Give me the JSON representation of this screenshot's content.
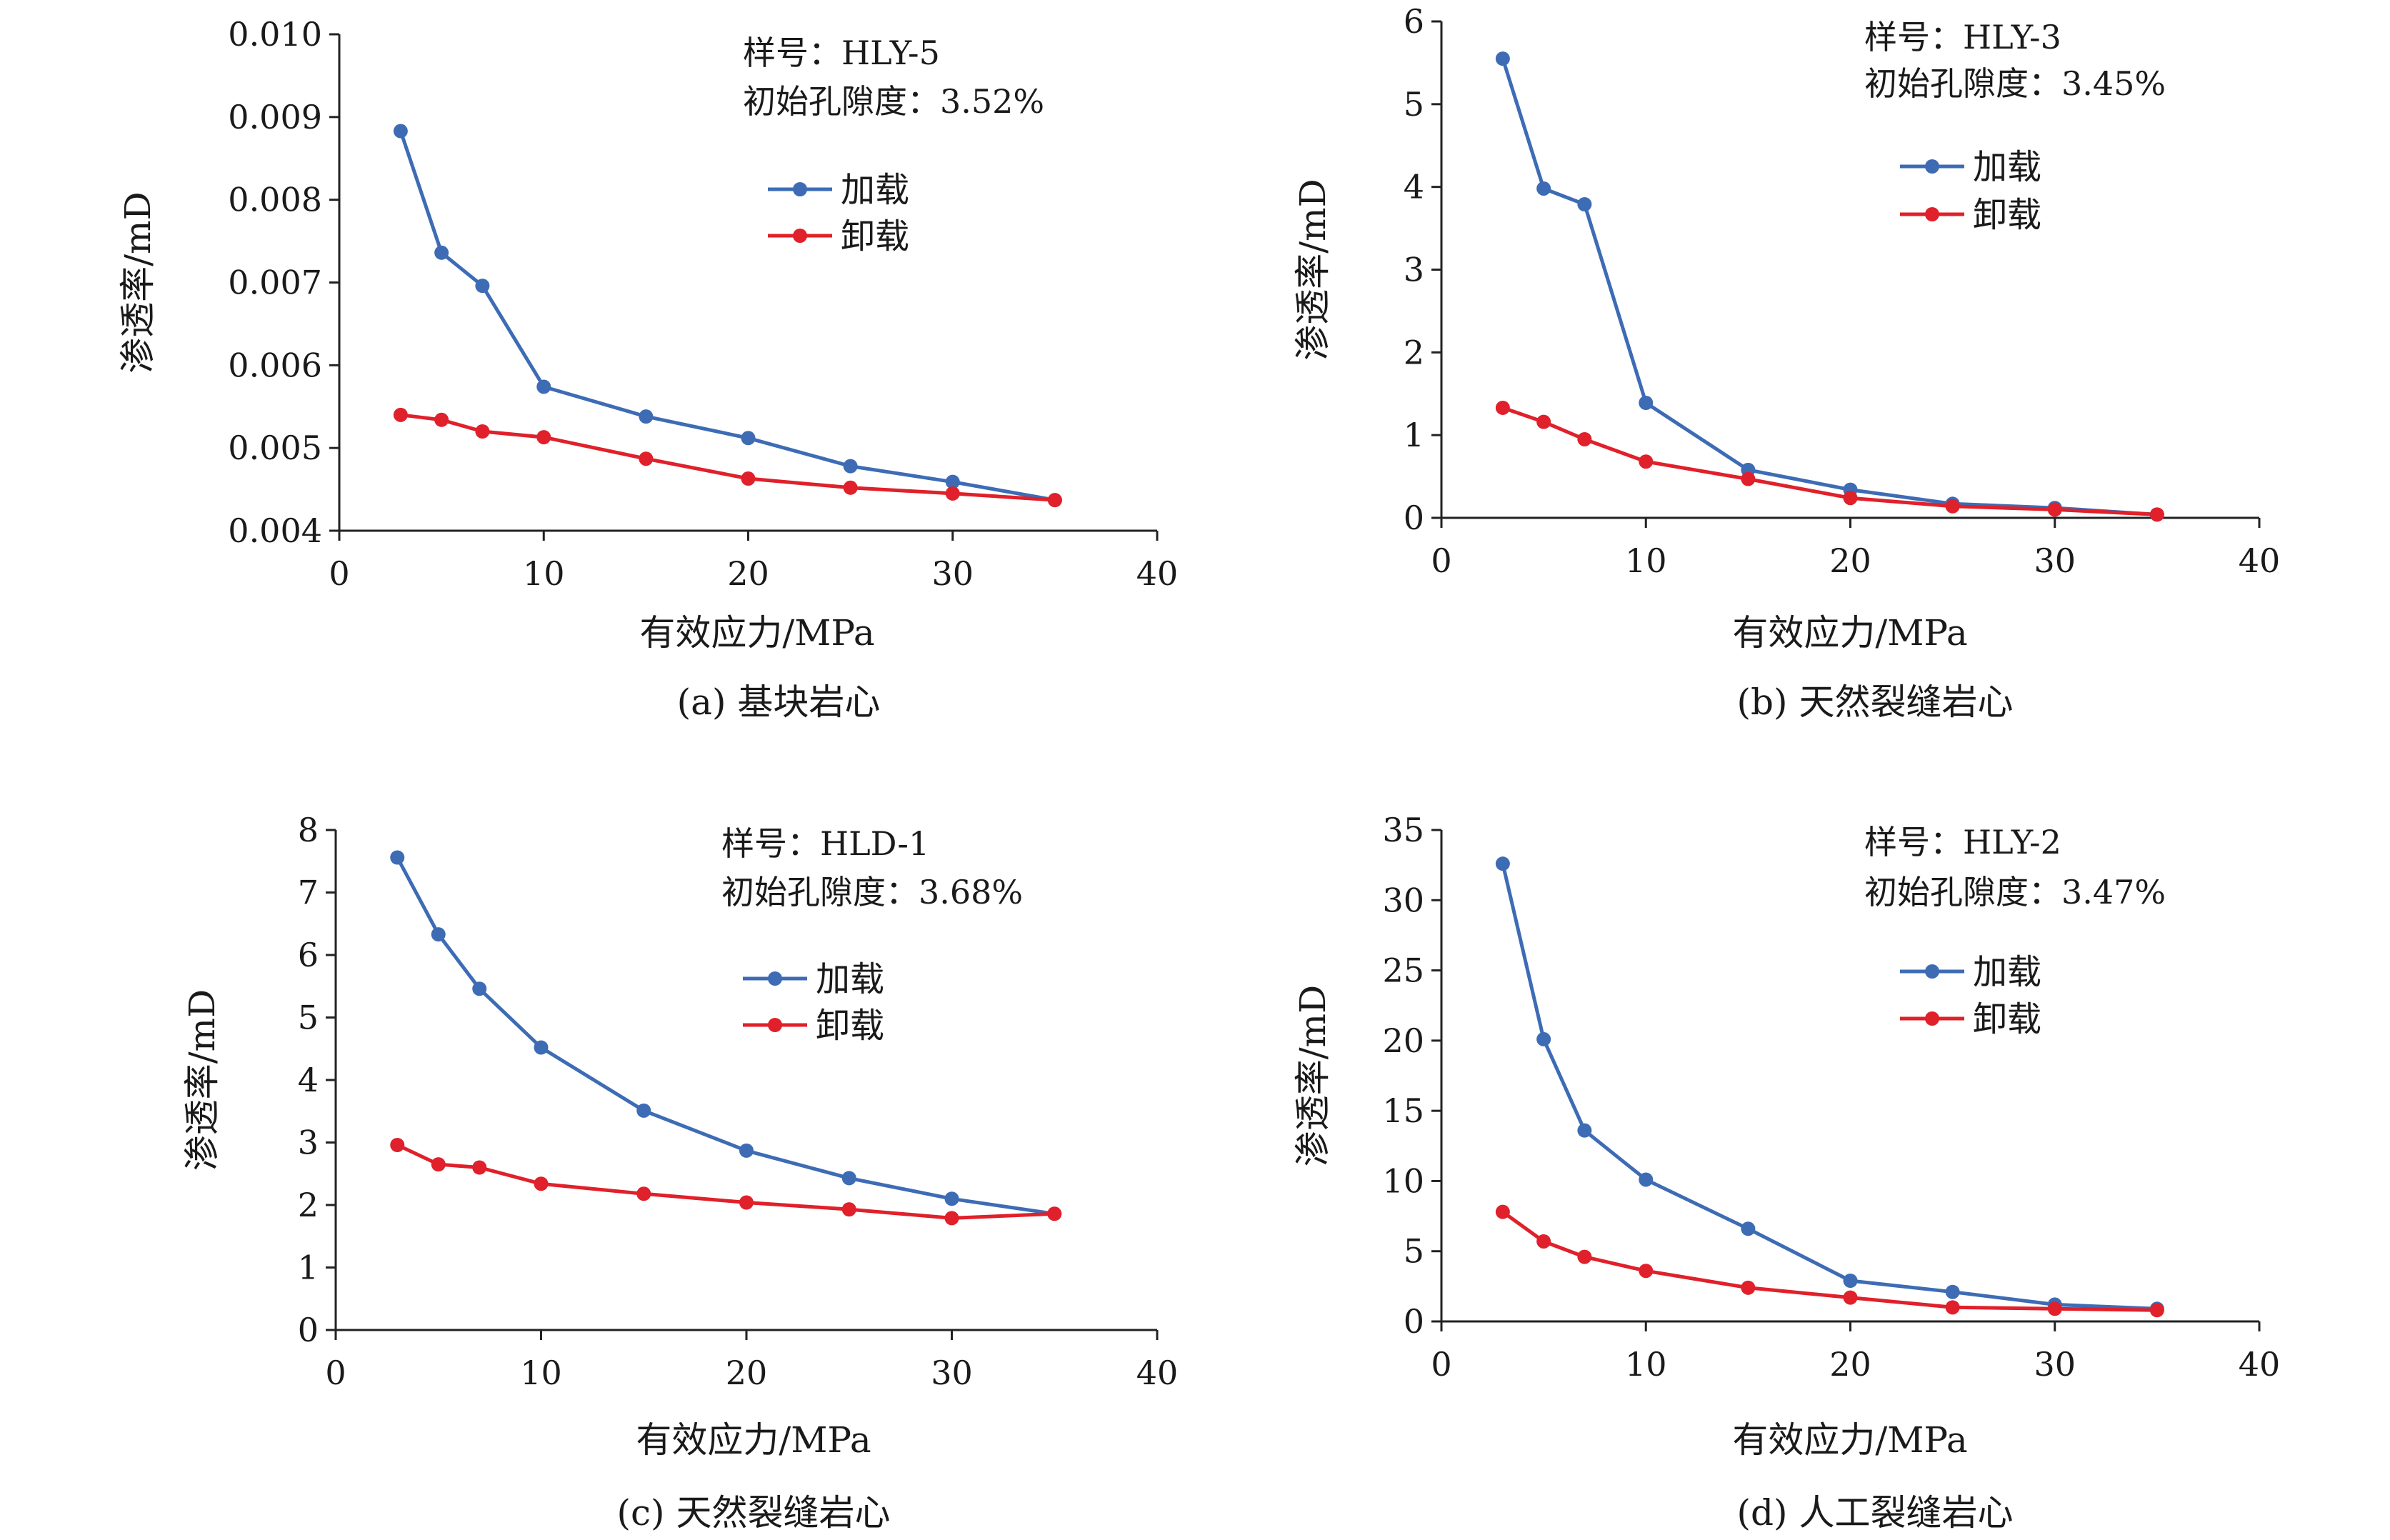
{
  "chart_data": [
    {
      "type": "line",
      "caption": "(a) 基块岩心",
      "sample_label": "样号：HLY-5",
      "porosity_label": "初始孔隙度：3.52%",
      "xlabel": "有效应力/MPa",
      "ylabel": "渗透率/mD",
      "xlim": [
        0,
        40
      ],
      "xticks": [
        0,
        10,
        20,
        30,
        40
      ],
      "xtick_labels": [
        "0",
        "10",
        "20",
        "30",
        "40"
      ],
      "ylim": [
        0.004,
        0.01
      ],
      "yticks": [
        0.004,
        0.005,
        0.006,
        0.007,
        0.008,
        0.009,
        0.01
      ],
      "ytick_labels": [
        "0.004",
        "0.005",
        "0.006",
        "0.007",
        "0.008",
        "0.009",
        "0.010"
      ],
      "legend_position": "top-right",
      "series": [
        {
          "name": "加载",
          "color": "#3d6cb5",
          "x": [
            3,
            5,
            7,
            10,
            15,
            20,
            25,
            30,
            35
          ],
          "y": [
            0.00883,
            0.00736,
            0.00696,
            0.00574,
            0.00538,
            0.00512,
            0.00478,
            0.00459,
            0.00437
          ]
        },
        {
          "name": "卸载",
          "color": "#e0202a",
          "x": [
            3,
            5,
            7,
            10,
            15,
            20,
            25,
            30,
            35
          ],
          "y": [
            0.0054,
            0.00534,
            0.0052,
            0.00513,
            0.00487,
            0.00463,
            0.00452,
            0.00445,
            0.00437
          ]
        }
      ]
    },
    {
      "type": "line",
      "caption": "(b) 天然裂缝岩心",
      "sample_label": "样号：HLY-3",
      "porosity_label": "初始孔隙度：3.45%",
      "xlabel": "有效应力/MPa",
      "ylabel": "渗透率/mD",
      "xlim": [
        0,
        40
      ],
      "xticks": [
        0,
        10,
        20,
        30,
        40
      ],
      "xtick_labels": [
        "0",
        "10",
        "20",
        "30",
        "40"
      ],
      "ylim": [
        0,
        6
      ],
      "yticks": [
        0,
        1,
        2,
        3,
        4,
        5,
        6
      ],
      "ytick_labels": [
        "0",
        "1",
        "2",
        "3",
        "4",
        "5",
        "6"
      ],
      "legend_position": "top-right",
      "series": [
        {
          "name": "加载",
          "color": "#3d6cb5",
          "x": [
            3,
            5,
            7,
            10,
            15,
            20,
            25,
            30,
            35
          ],
          "y": [
            5.55,
            3.98,
            3.79,
            1.39,
            0.58,
            0.34,
            0.17,
            0.12,
            0.04
          ]
        },
        {
          "name": "卸载",
          "color": "#e0202a",
          "x": [
            3,
            5,
            7,
            10,
            15,
            20,
            25,
            30,
            35
          ],
          "y": [
            1.33,
            1.16,
            0.95,
            0.68,
            0.47,
            0.24,
            0.14,
            0.1,
            0.04
          ]
        }
      ]
    },
    {
      "type": "line",
      "caption": "(c) 天然裂缝岩心",
      "sample_label": "样号：HLD-1",
      "porosity_label": "初始孔隙度：3.68%",
      "xlabel": "有效应力/MPa",
      "ylabel": "渗透率/mD",
      "xlim": [
        0,
        40
      ],
      "xticks": [
        0,
        10,
        20,
        30,
        40
      ],
      "xtick_labels": [
        "0",
        "10",
        "20",
        "30",
        "40"
      ],
      "ylim": [
        0,
        8
      ],
      "yticks": [
        0,
        1,
        2,
        3,
        4,
        5,
        6,
        7,
        8
      ],
      "ytick_labels": [
        "0",
        "1",
        "2",
        "3",
        "4",
        "5",
        "6",
        "7",
        "8"
      ],
      "legend_position": "top-right",
      "series": [
        {
          "name": "加载",
          "color": "#3d6cb5",
          "x": [
            3,
            5,
            7,
            10,
            15,
            20,
            25,
            30,
            35
          ],
          "y": [
            7.56,
            6.33,
            5.46,
            4.52,
            3.51,
            2.87,
            2.43,
            2.1,
            1.86
          ]
        },
        {
          "name": "卸载",
          "color": "#e0202a",
          "x": [
            3,
            5,
            7,
            10,
            15,
            20,
            25,
            30,
            35
          ],
          "y": [
            2.96,
            2.65,
            2.6,
            2.34,
            2.18,
            2.04,
            1.93,
            1.79,
            1.86
          ]
        }
      ]
    },
    {
      "type": "line",
      "caption": "(d) 人工裂缝岩心",
      "sample_label": "样号：HLY-2",
      "porosity_label": "初始孔隙度：3.47%",
      "xlabel": "有效应力/MPa",
      "ylabel": "渗透率/mD",
      "xlim": [
        0,
        40
      ],
      "xticks": [
        0,
        10,
        20,
        30,
        40
      ],
      "xtick_labels": [
        "0",
        "10",
        "20",
        "30",
        "40"
      ],
      "ylim": [
        0,
        35
      ],
      "yticks": [
        0,
        5,
        10,
        15,
        20,
        25,
        30,
        35
      ],
      "ytick_labels": [
        "0",
        "5",
        "10",
        "15",
        "20",
        "25",
        "30",
        "35"
      ],
      "legend_position": "top-right",
      "series": [
        {
          "name": "加载",
          "color": "#3d6cb5",
          "x": [
            3,
            5,
            7,
            10,
            15,
            20,
            25,
            30,
            35
          ],
          "y": [
            32.6,
            20.1,
            13.6,
            10.1,
            6.6,
            2.9,
            2.1,
            1.2,
            0.9
          ]
        },
        {
          "name": "卸载",
          "color": "#e0202a",
          "x": [
            3,
            5,
            7,
            10,
            15,
            20,
            25,
            30,
            35
          ],
          "y": [
            7.8,
            5.7,
            4.6,
            3.6,
            2.4,
            1.7,
            1.0,
            0.9,
            0.8
          ]
        }
      ]
    }
  ]
}
